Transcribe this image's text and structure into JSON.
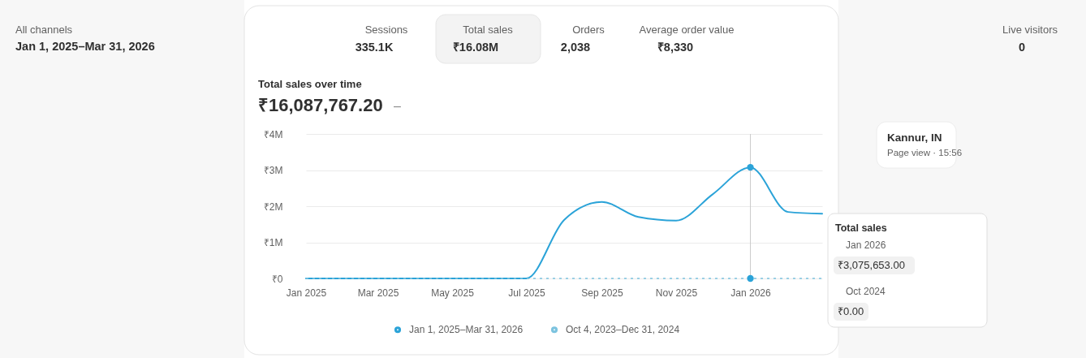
{
  "chart_data": {
    "type": "line",
    "title": "Total sales over time",
    "subtitle": "₹16,087,767.20",
    "x": [
      "2025-01",
      "2025-02",
      "2025-03",
      "2025-04",
      "2025-05",
      "2025-06",
      "2025-07",
      "2025-08",
      "2025-09",
      "2025-10",
      "2025-11",
      "2025-12",
      "2026-01",
      "2026-02",
      "2026-03"
    ],
    "series": [
      {
        "name": "Jan 1, 2025–Mar 31, 2026",
        "color": "#2ba3d8",
        "values": [
          0,
          0,
          0,
          0,
          0,
          0,
          0,
          1620000,
          2120000,
          1700000,
          1600000,
          2330000,
          3075653,
          1840000,
          1790000
        ]
      },
      {
        "name": "Oct 4, 2023–Dec 31, 2024",
        "color": "#7cc3df",
        "line_style": "dashed",
        "values": [
          0,
          0,
          0,
          0,
          0,
          0,
          0,
          0,
          0,
          0,
          0,
          0,
          0,
          0,
          0
        ]
      },
      {
        "type": "scatter",
        "x": [
          "2026-01"
        ],
        "values": [
          3075653
        ],
        "color": "#2ba3d8",
        "marker": "circle"
      },
      {
        "type": "scatter",
        "x": [
          "2026-01"
        ],
        "values": [
          0
        ],
        "color": "#2ba3d8",
        "marker": "circle"
      }
    ],
    "xlim": [
      "2025-01",
      "2026-03"
    ],
    "ylim": [
      0,
      4000000
    ],
    "xticks": [
      {
        "value": "2025-01",
        "label": "Jan 2025"
      },
      {
        "value": "2025-03",
        "label": "Mar 2025"
      },
      {
        "value": "2025-05",
        "label": "May 2025"
      },
      {
        "value": "2025-07",
        "label": "Jul 2025"
      },
      {
        "value": "2025-09",
        "label": "Sep 2025"
      },
      {
        "value": "2025-11",
        "label": "Nov 2025"
      },
      {
        "value": "2026-01",
        "label": "Jan 2026"
      }
    ],
    "yticks": [
      {
        "value": 0,
        "label": "₹0"
      },
      {
        "value": 1000000,
        "label": "₹1M"
      },
      {
        "value": 2000000,
        "label": "₹2M"
      },
      {
        "value": 3000000,
        "label": "₹3M"
      },
      {
        "value": 4000000,
        "label": "₹4M"
      }
    ],
    "grid": "y",
    "legend": "bottom",
    "line_style": "solid",
    "marker": "none",
    "ref_lines": [
      {
        "axis": "x",
        "value": "2026-01",
        "color": "#cccccc"
      }
    ],
    "annotations": [
      "All channels",
      "Jan 1, 2025–Mar 31, 2026",
      "Sessions",
      "335.1K",
      "Total sales",
      "₹16.08M",
      "Orders",
      "2,038",
      "Average order value",
      "₹8,330",
      "–",
      "Live visitors",
      "0",
      "Kannur, IN",
      "Page view · 15:56",
      "Total sales",
      "Jan 2026",
      "₹3,075,653.00",
      "Oct 2024",
      "₹0.00"
    ]
  }
}
